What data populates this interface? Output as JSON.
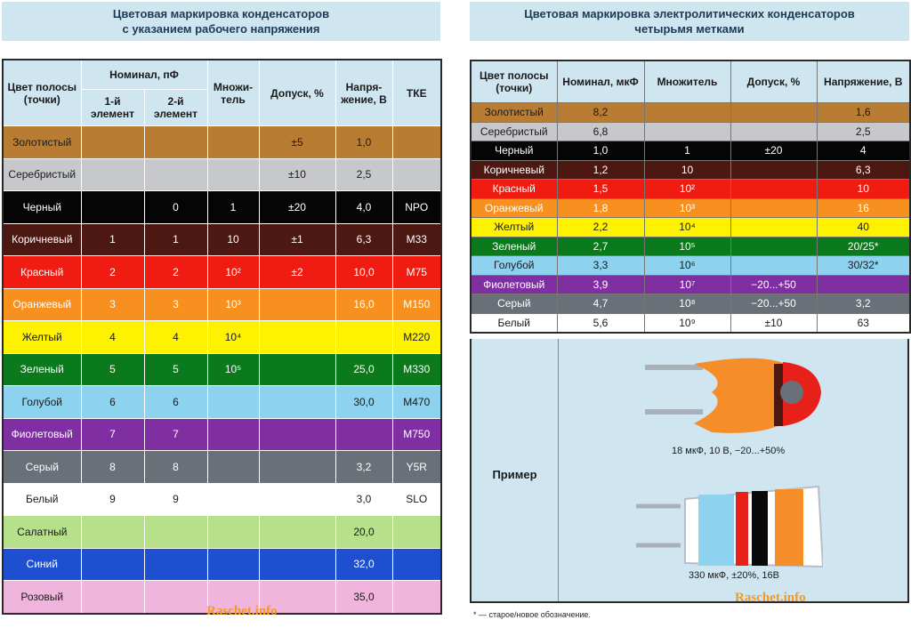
{
  "left": {
    "title_line1": "Цветовая маркировка конденсаторов",
    "title_line2": "с указанием рабочего напряжения",
    "headers": {
      "color": "Цвет полосы (точки)",
      "nominal": "Номинал, пФ",
      "first": "1-й элемент",
      "second": "2-й элемент",
      "mult": "Множи-тель",
      "tol": "Допуск, %",
      "volt": "Напря-жение, В",
      "tke": "ТКЕ"
    },
    "rows": [
      {
        "name": "Золотистый",
        "bg": "#b87d33",
        "fg": "#1a1a1a",
        "c1": "",
        "c2": "",
        "mult": "",
        "tol": "±5",
        "volt": "1,0",
        "tke": ""
      },
      {
        "name": "Серебристый",
        "bg": "#c6c8cc",
        "fg": "#1a1a1a",
        "c1": "",
        "c2": "",
        "mult": "",
        "tol": "±10",
        "volt": "2,5",
        "tke": ""
      },
      {
        "name": "Черный",
        "bg": "#050505",
        "fg": "#ffffff",
        "c1": "",
        "c2": "0",
        "mult": "1",
        "tol": "±20",
        "volt": "4,0",
        "tke": "NPO"
      },
      {
        "name": "Коричневый",
        "bg": "#4e1812",
        "fg": "#ffffff",
        "c1": "1",
        "c2": "1",
        "mult": "10",
        "tol": "±1",
        "volt": "6,3",
        "tke": "M33"
      },
      {
        "name": "Красный",
        "bg": "#f01c12",
        "fg": "#ffffff",
        "c1": "2",
        "c2": "2",
        "mult": "10²",
        "tol": "±2",
        "volt": "10,0",
        "tke": "M75"
      },
      {
        "name": "Оранжевый",
        "bg": "#f7901e",
        "fg": "#ffffff",
        "c1": "3",
        "c2": "3",
        "mult": "10³",
        "tol": "",
        "volt": "16,0",
        "tke": "M150"
      },
      {
        "name": "Желтый",
        "bg": "#fef200",
        "fg": "#1a1a1a",
        "c1": "4",
        "c2": "4",
        "mult": "10⁴",
        "tol": "",
        "volt": "",
        "tke": "M220"
      },
      {
        "name": "Зеленый",
        "bg": "#0a7a1c",
        "fg": "#ffffff",
        "c1": "5",
        "c2": "5",
        "mult": "10⁵",
        "tol": "",
        "volt": "25,0",
        "tke": "M330"
      },
      {
        "name": "Голубой",
        "bg": "#8dd2ee",
        "fg": "#1a1a1a",
        "c1": "6",
        "c2": "6",
        "mult": "",
        "tol": "",
        "volt": "30,0",
        "tke": "M470"
      },
      {
        "name": "Фиолетовый",
        "bg": "#7f2fa1",
        "fg": "#ffffff",
        "c1": "7",
        "c2": "7",
        "mult": "",
        "tol": "",
        "volt": "",
        "tke": "M750"
      },
      {
        "name": "Серый",
        "bg": "#697078",
        "fg": "#ffffff",
        "c1": "8",
        "c2": "8",
        "mult": "",
        "tol": "",
        "volt": "3,2",
        "tke": "Y5R"
      },
      {
        "name": "Белый",
        "bg": "#ffffff",
        "fg": "#1a1a1a",
        "c1": "9",
        "c2": "9",
        "mult": "",
        "tol": "",
        "volt": "3,0",
        "tke": "SLO"
      },
      {
        "name": "Салатный",
        "bg": "#b6e08a",
        "fg": "#1a1a1a",
        "c1": "",
        "c2": "",
        "mult": "",
        "tol": "",
        "volt": "20,0",
        "tke": ""
      },
      {
        "name": "Синий",
        "bg": "#1e4fd0",
        "fg": "#ffffff",
        "c1": "",
        "c2": "",
        "mult": "",
        "tol": "",
        "volt": "32,0",
        "tke": ""
      },
      {
        "name": "Розовый",
        "bg": "#efb5dc",
        "fg": "#1a1a1a",
        "c1": "",
        "c2": "",
        "mult": "",
        "tol": "",
        "volt": "35,0",
        "tke": ""
      }
    ],
    "watermark": "Raschet.info"
  },
  "right": {
    "title_line1": "Цветовая маркировка электролитических конденсаторов",
    "title_line2": "четырьмя метками",
    "headers": {
      "color": "Цвет полосы (точки)",
      "nominal": "Номинал, мкФ",
      "mult": "Множитель",
      "tol": "Допуск, %",
      "volt": "Напряжение, В"
    },
    "rows": [
      {
        "name": "Золотистый",
        "bg": "#b87d33",
        "fg": "#1a1a1a",
        "nom": "8,2",
        "mult": "",
        "tol": "",
        "volt": "1,6"
      },
      {
        "name": "Серебристый",
        "bg": "#c6c8cc",
        "fg": "#1a1a1a",
        "nom": "6,8",
        "mult": "",
        "tol": "",
        "volt": "2,5"
      },
      {
        "name": "Черный",
        "bg": "#050505",
        "fg": "#ffffff",
        "nom": "1,0",
        "mult": "1",
        "tol": "±20",
        "volt": "4"
      },
      {
        "name": "Коричневый",
        "bg": "#4e1812",
        "fg": "#ffffff",
        "nom": "1,2",
        "mult": "10",
        "tol": "",
        "volt": "6,3"
      },
      {
        "name": "Красный",
        "bg": "#f01c12",
        "fg": "#ffffff",
        "nom": "1,5",
        "mult": "10²",
        "tol": "",
        "volt": "10"
      },
      {
        "name": "Оранжевый",
        "bg": "#f7901e",
        "fg": "#ffffff",
        "nom": "1,8",
        "mult": "10³",
        "tol": "",
        "volt": "16"
      },
      {
        "name": "Желтый",
        "bg": "#fef200",
        "fg": "#1a1a1a",
        "nom": "2,2",
        "mult": "10⁴",
        "tol": "",
        "volt": "40"
      },
      {
        "name": "Зеленый",
        "bg": "#0a7a1c",
        "fg": "#ffffff",
        "nom": "2,7",
        "mult": "10⁵",
        "tol": "",
        "volt": "20/25*"
      },
      {
        "name": "Голубой",
        "bg": "#8dd2ee",
        "fg": "#1a1a1a",
        "nom": "3,3",
        "mult": "10⁶",
        "tol": "",
        "volt": "30/32*"
      },
      {
        "name": "Фиолетовый",
        "bg": "#7f2fa1",
        "fg": "#ffffff",
        "nom": "3,9",
        "mult": "10⁷",
        "tol": "−20...+50",
        "volt": ""
      },
      {
        "name": "Серый",
        "bg": "#697078",
        "fg": "#ffffff",
        "nom": "4,7",
        "mult": "10⁸",
        "tol": "−20...+50",
        "volt": "3,2"
      },
      {
        "name": "Белый",
        "bg": "#ffffff",
        "fg": "#1a1a1a",
        "nom": "5,6",
        "mult": "10⁹",
        "tol": "±10",
        "volt": "63"
      }
    ],
    "example_label": "Пример",
    "example1_caption": "18 мкФ, 10 В, −20...+50%",
    "example2_caption": "330 мкФ, ±20%, 16В",
    "footnote": "* — старое/новое обозначение.",
    "watermark": "Raschet.info"
  }
}
